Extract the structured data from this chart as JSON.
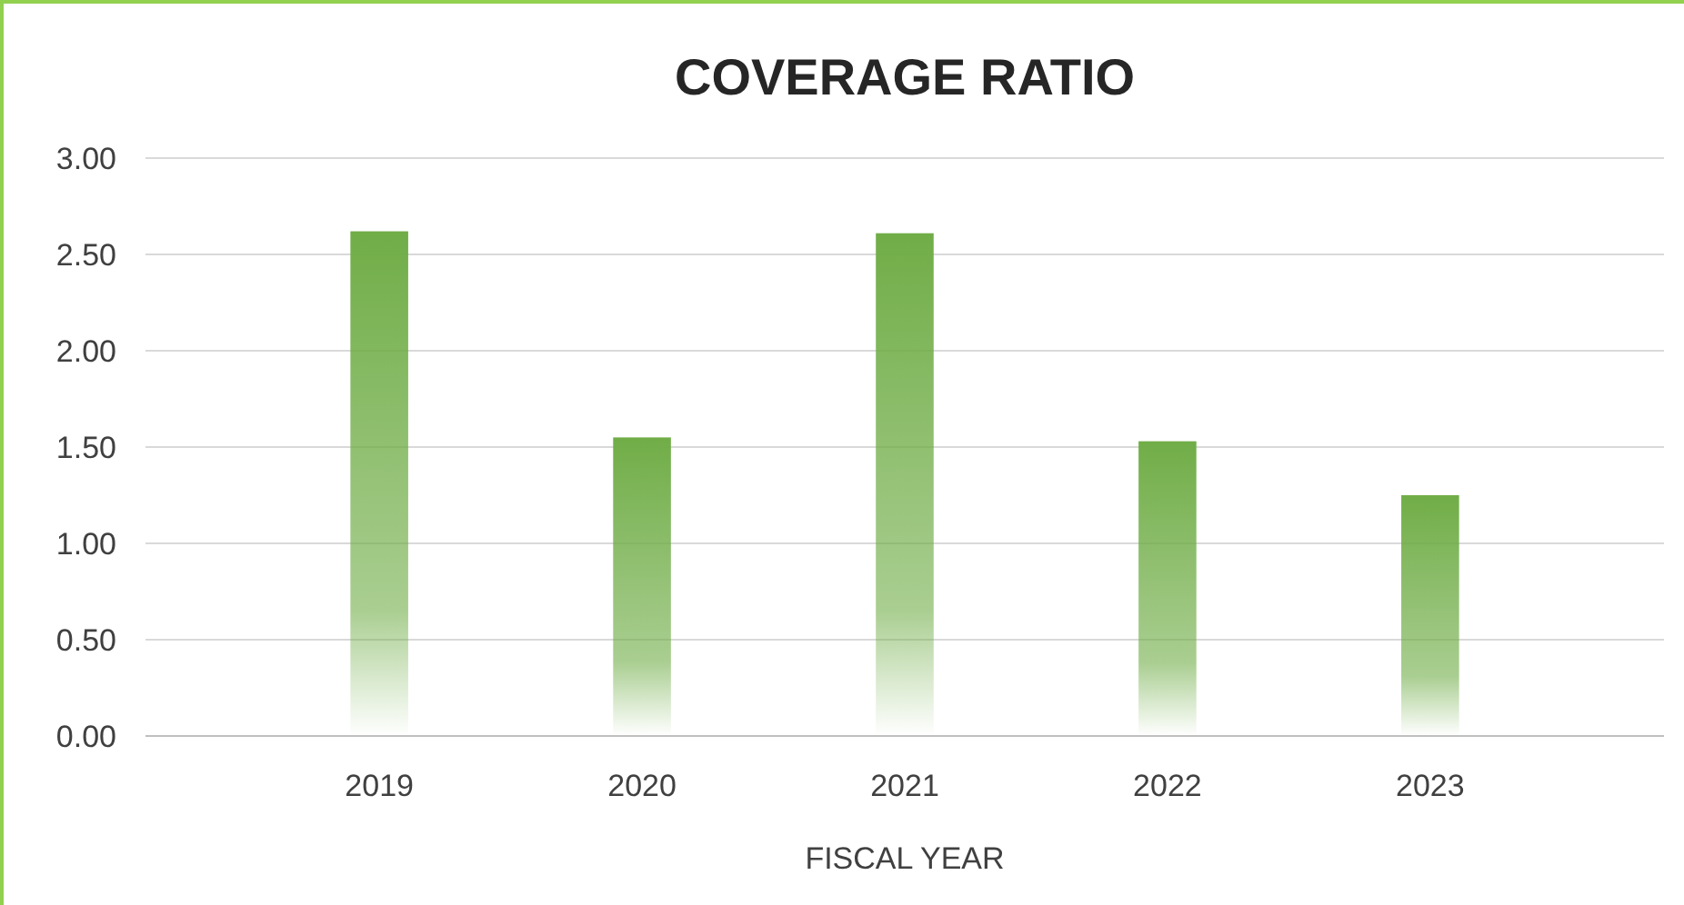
{
  "chart_data": {
    "type": "bar",
    "title": "COVERAGE RATIO",
    "xlabel": "FISCAL YEAR",
    "categories": [
      "2019",
      "2020",
      "2021",
      "2022",
      "2023"
    ],
    "values": [
      2.62,
      1.55,
      2.61,
      1.53,
      1.25
    ],
    "color": "#70ad47",
    "ylim": [
      0,
      3
    ],
    "yticks": [
      {
        "value": 0,
        "label": "0.00"
      },
      {
        "value": 0.5,
        "label": "0.50"
      },
      {
        "value": 1,
        "label": "1.00"
      },
      {
        "value": 1.5,
        "label": "1.50"
      },
      {
        "value": 2,
        "label": "2.00"
      },
      {
        "value": 2.5,
        "label": "2.50"
      },
      {
        "value": 3,
        "label": "3.00"
      }
    ],
    "grid": true
  }
}
